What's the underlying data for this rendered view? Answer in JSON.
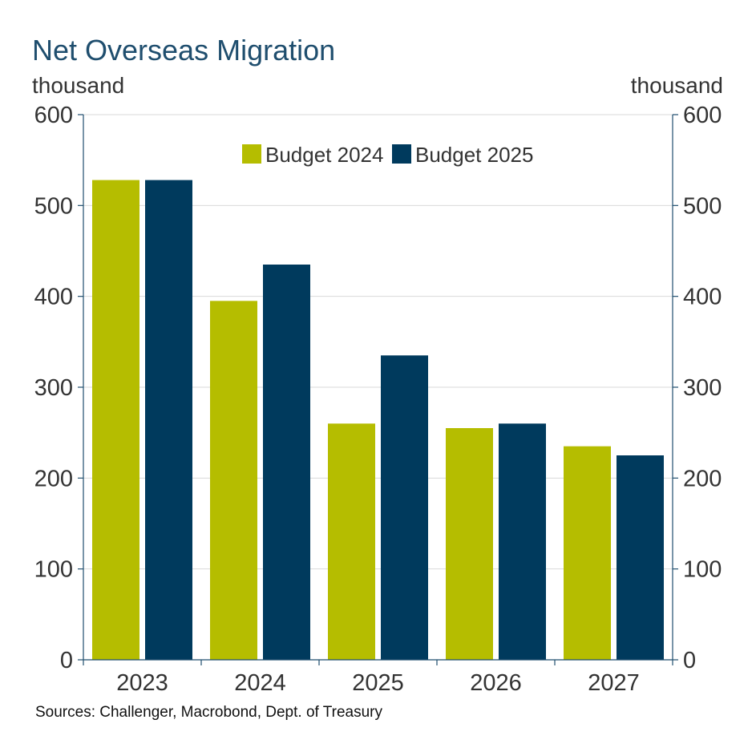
{
  "chart_data": {
    "type": "bar",
    "title": "Net Overseas Migration",
    "ylabel_left": "thousand",
    "ylabel_right": "thousand",
    "categories": [
      "2023",
      "2024",
      "2025",
      "2026",
      "2027"
    ],
    "series": [
      {
        "name": "Budget 2024",
        "color": "#b5bd00",
        "values": [
          528,
          395,
          260,
          255,
          235
        ]
      },
      {
        "name": "Budget 2025",
        "color": "#003a5d",
        "values": [
          528,
          435,
          335,
          260,
          225
        ]
      }
    ],
    "ylim": [
      0,
      600
    ],
    "yticks": [
      0,
      100,
      200,
      300,
      400,
      500,
      600
    ],
    "grid": true,
    "legend_position": "top-center",
    "source": "Sources: Challenger, Macrobond, Dept. of Treasury",
    "colors": {
      "title": "#1f4e6e",
      "axis": "#1f4e6e",
      "grid": "#d9d9d9"
    }
  }
}
